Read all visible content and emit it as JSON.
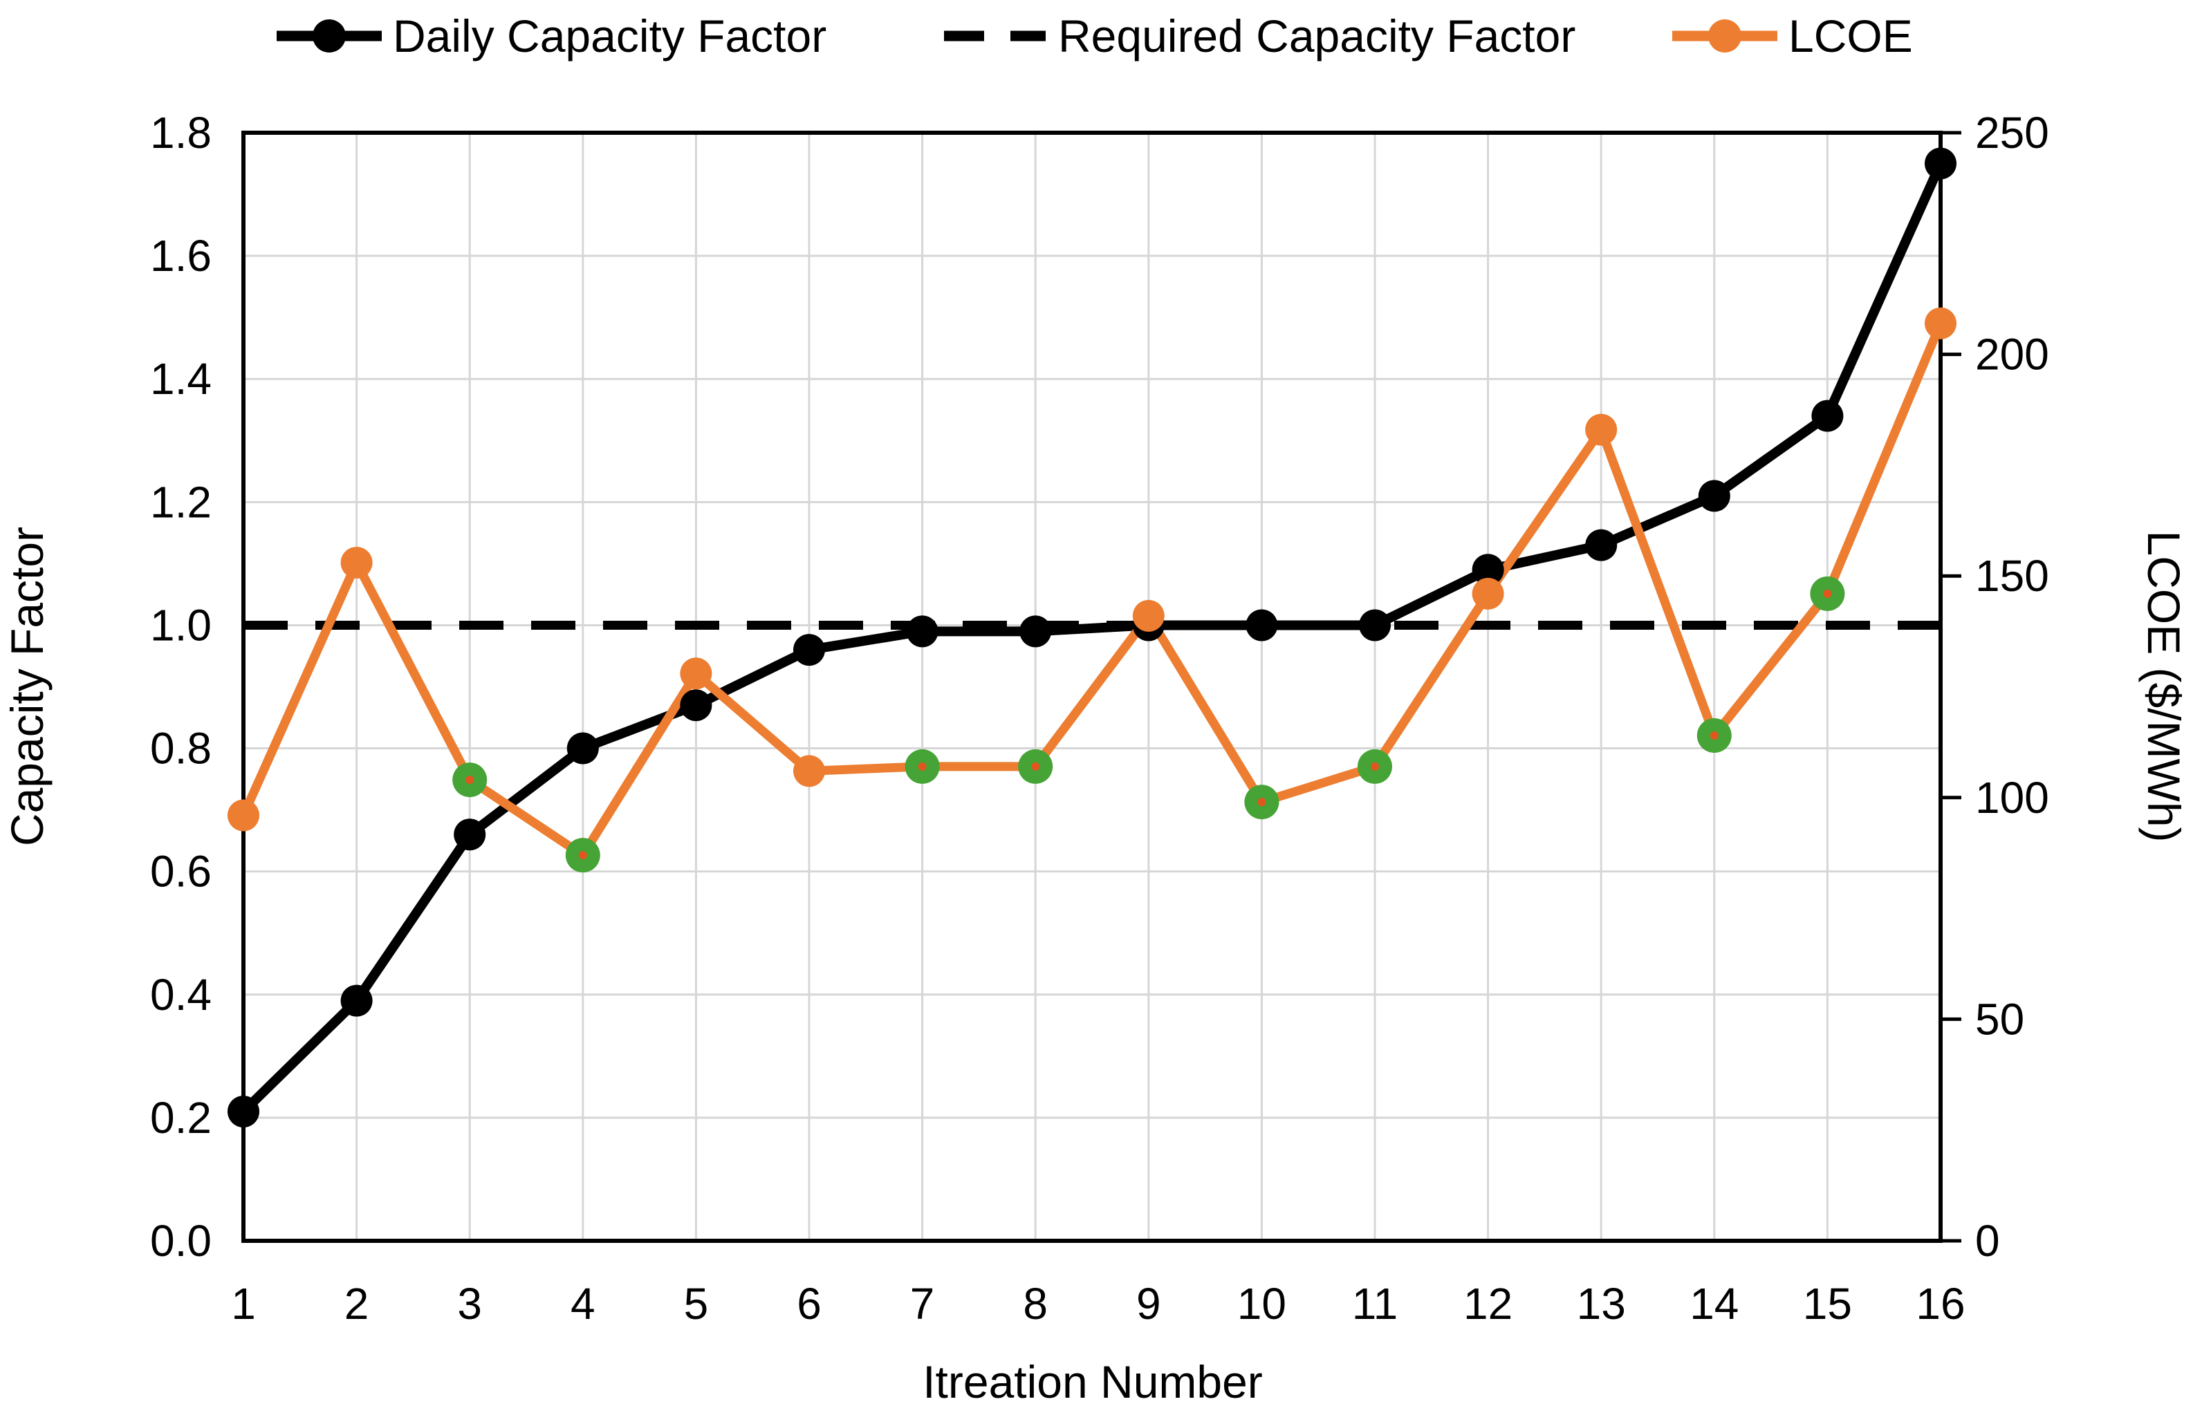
{
  "chart_data": {
    "type": "line",
    "title": "",
    "xlabel": "Itreation Number",
    "x": [
      1,
      2,
      3,
      4,
      5,
      6,
      7,
      8,
      9,
      10,
      11,
      12,
      13,
      14,
      15,
      16
    ],
    "x_tick_labels": [
      "1",
      "2",
      "3",
      "4",
      "5",
      "6",
      "7",
      "8",
      "9",
      "10",
      "11",
      "12",
      "13",
      "14",
      "15",
      "16"
    ],
    "left_axis": {
      "label": "Capacity Factor",
      "min": 0.0,
      "max": 1.8,
      "step": 0.2,
      "ticks": [
        "0.0",
        "0.2",
        "0.4",
        "0.6",
        "0.8",
        "1.0",
        "1.2",
        "1.4",
        "1.6",
        "1.8"
      ]
    },
    "right_axis": {
      "label": "LCOE ($/MWh)",
      "min": 0,
      "max": 250,
      "step": 50,
      "ticks": [
        "0",
        "50",
        "100",
        "150",
        "200",
        "250"
      ]
    },
    "grid": true,
    "legend_position": "top",
    "series": [
      {
        "name": "Daily Capacity Factor",
        "axis": "left",
        "kind": "line",
        "line_style": "solid",
        "color": "#000000",
        "marker": "circle",
        "marker_color": "#000000",
        "values": [
          0.21,
          0.39,
          0.66,
          0.8,
          0.87,
          0.96,
          0.99,
          0.99,
          1.0,
          1.0,
          1.0,
          1.09,
          1.13,
          1.21,
          1.34,
          1.75
        ]
      },
      {
        "name": "Required Capacity Factor",
        "axis": "left",
        "kind": "constant-line",
        "line_style": "dashed",
        "color": "#000000",
        "marker": "none",
        "value": 1.0
      },
      {
        "name": "LCOE",
        "axis": "right",
        "kind": "line",
        "line_style": "solid",
        "color": "#ED7D31",
        "marker": "circle",
        "marker_color": "#ED7D31",
        "values": [
          96,
          153,
          104,
          87,
          128,
          106,
          107,
          107,
          141,
          99,
          107,
          146,
          183,
          114,
          146,
          207
        ],
        "highlighted_points": [
          3,
          4,
          7,
          8,
          10,
          11,
          14,
          15
        ],
        "highlight_marker_color": "#46A335",
        "highlight_marker_center_color": "#E0561F"
      }
    ],
    "colors": {
      "gridline": "#D6D6D6",
      "axis": "#000000",
      "background": "#FFFFFF"
    }
  }
}
